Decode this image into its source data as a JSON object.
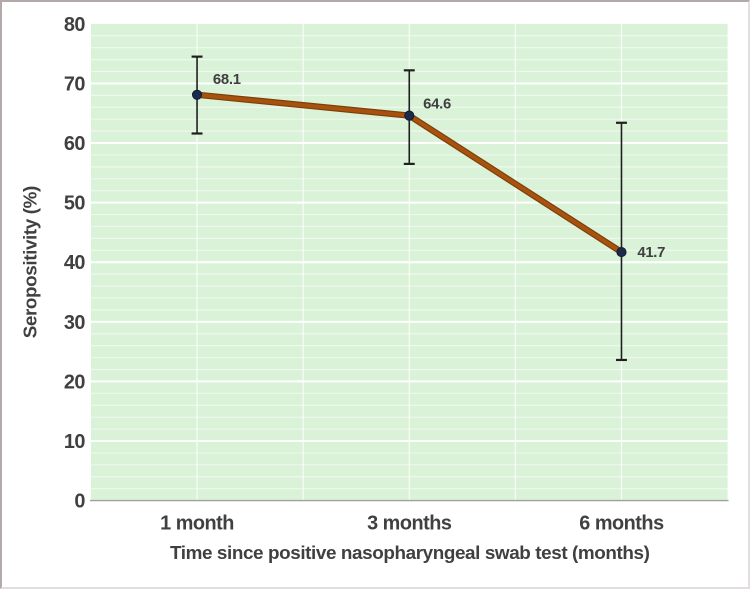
{
  "chart_data": {
    "type": "line",
    "categories": [
      "1 month",
      "3 months",
      "6 months"
    ],
    "series": [
      {
        "name": "Seropositivity",
        "values": [
          68.1,
          64.6,
          41.7
        ],
        "error_low": [
          61.6,
          56.5,
          23.6
        ],
        "error_high": [
          74.5,
          72.2,
          63.4
        ],
        "data_labels": [
          "68.1",
          "64.6",
          "41.7"
        ]
      }
    ],
    "xlabel": "Time since positive nasopharyngeal swab test (months)",
    "ylabel": "Seropositivity (%)",
    "ylim": [
      0,
      80
    ],
    "yticks": [
      0,
      10,
      20,
      30,
      40,
      50,
      60,
      70,
      80
    ],
    "minor_grid_step": 2,
    "grid": "horizontal major+minor white lines, vertical half-category white lines",
    "legend_position": "none",
    "colors": {
      "canvas_bg": "#ffffff",
      "plot_bg": "#daf2d8",
      "gridline": "#ffffff",
      "line": "#a8520f",
      "line_edge": "#7c3f08",
      "marker": "#1c2b4a",
      "marker_edge": "#0f1c33",
      "error_bar": "#1f1f1f",
      "axis_line": "#a0a0a0",
      "text": "#404040"
    }
  }
}
